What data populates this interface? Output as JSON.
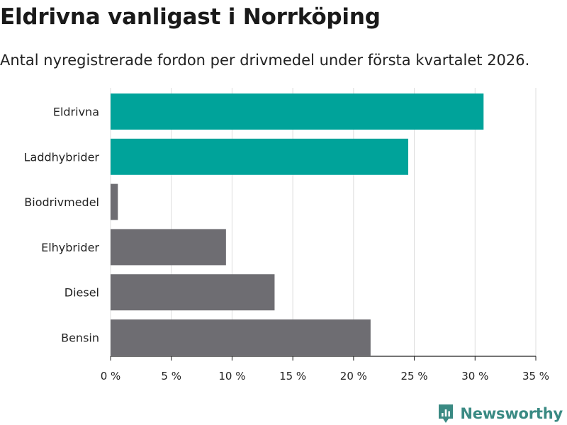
{
  "title": "Eldrivna vanligast i Norrköping",
  "subtitle": "Antal nyregistrerade fordon per drivmedel under första kvartalet 2026.",
  "brand": {
    "name": "Newsworthy",
    "color": "#3a8a83",
    "icon": "newsworthy-logo-icon"
  },
  "colors": {
    "highlight": "#00a39a",
    "default": "#6e6d72",
    "grid": "#dddddd"
  },
  "chart_data": {
    "type": "bar",
    "orientation": "horizontal",
    "categories": [
      "Eldrivna",
      "Laddhybrider",
      "Biodrivmedel",
      "Elhybrider",
      "Diesel",
      "Bensin"
    ],
    "values": [
      30.7,
      24.5,
      0.6,
      9.5,
      13.5,
      21.4
    ],
    "highlighted": [
      true,
      true,
      false,
      false,
      false,
      false
    ],
    "xlim": [
      0,
      35
    ],
    "xticks": [
      0,
      5,
      10,
      15,
      20,
      25,
      30,
      35
    ],
    "xtick_labels": [
      "0 %",
      "5 %",
      "10 %",
      "15 %",
      "20 %",
      "25 %",
      "30 %",
      "35 %"
    ],
    "xlabel": "",
    "ylabel": "",
    "grid": "vertical",
    "legend": "none"
  }
}
